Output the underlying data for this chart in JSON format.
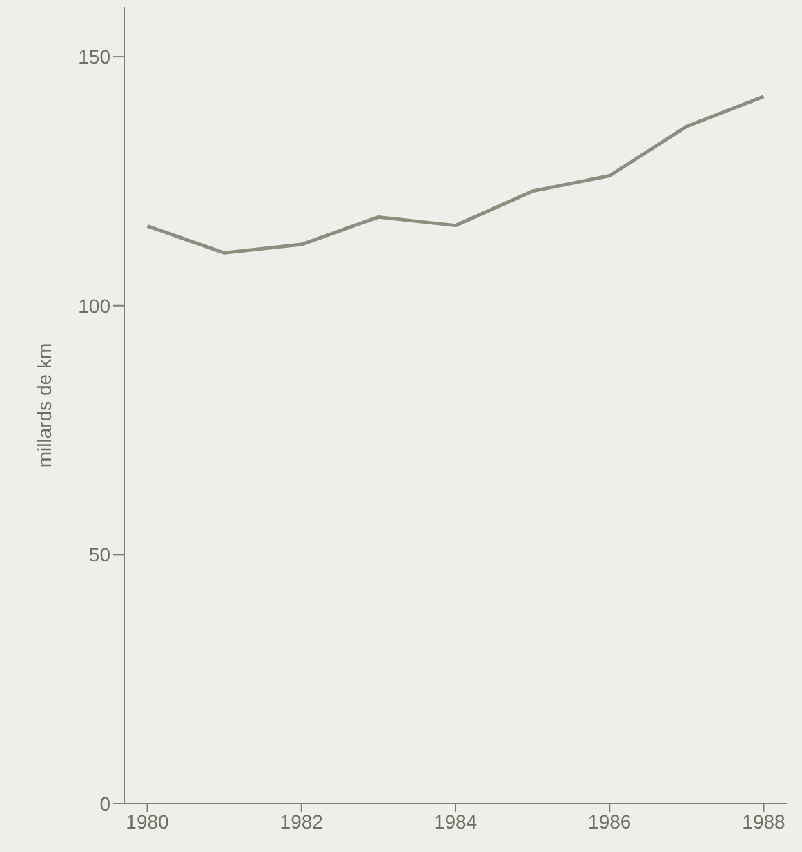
{
  "chart_data": {
    "type": "line",
    "ylabel": "millards de km",
    "x": [
      1980,
      1981,
      1982,
      1983,
      1984,
      1985,
      1986,
      1987,
      1988
    ],
    "series": [
      {
        "color": "#8a9080",
        "values": [
          116.0,
          110.6,
          112.3,
          117.8,
          116.1,
          123.0,
          126.1,
          136.0,
          142.0
        ]
      }
    ],
    "xlim": [
      1979.7,
      1988.3
    ],
    "xticks": [
      1980,
      1982,
      1984,
      1986,
      1988
    ],
    "ylim": [
      0,
      160
    ],
    "yticks": [
      0,
      50,
      100,
      150
    ],
    "grid": false,
    "legend": false,
    "marker": "none",
    "line_style": "solid"
  }
}
